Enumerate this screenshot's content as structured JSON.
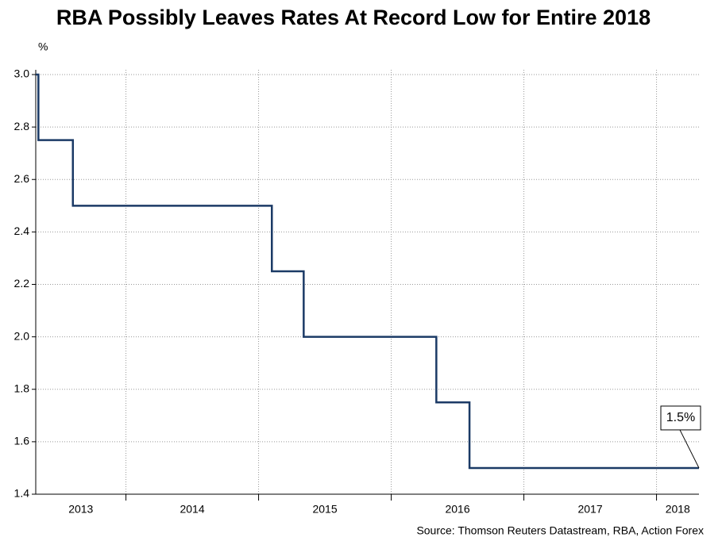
{
  "chart_data": {
    "type": "line",
    "title": "RBA Possibly Leaves Rates At Record Low for Entire 2018",
    "y_label": "%",
    "source": "Source: Thomson Reuters Datastream, RBA, Action Forex",
    "step": "post",
    "x": [
      2013.32,
      2013.34,
      2013.6,
      2015.1,
      2015.34,
      2016.34,
      2016.59,
      2018.32
    ],
    "series": [
      {
        "color": "#1b3a66",
        "values": [
          3.0,
          2.75,
          2.5,
          2.25,
          2.0,
          1.75,
          1.5,
          1.5
        ]
      }
    ],
    "annotation": "1.5%",
    "xlim": [
      2013.32,
      2018.32
    ],
    "xticks": [
      2013,
      2014,
      2015,
      2016,
      2017,
      2018
    ],
    "ylim": [
      1.4,
      3.0
    ],
    "yticks": [
      1.4,
      1.6,
      1.8,
      {
        "value": 2.0,
        "label": "2.0"
      },
      2.2,
      2.4,
      2.6,
      2.8,
      {
        "value": 3.0,
        "label": "3.0"
      }
    ],
    "grid": true
  }
}
